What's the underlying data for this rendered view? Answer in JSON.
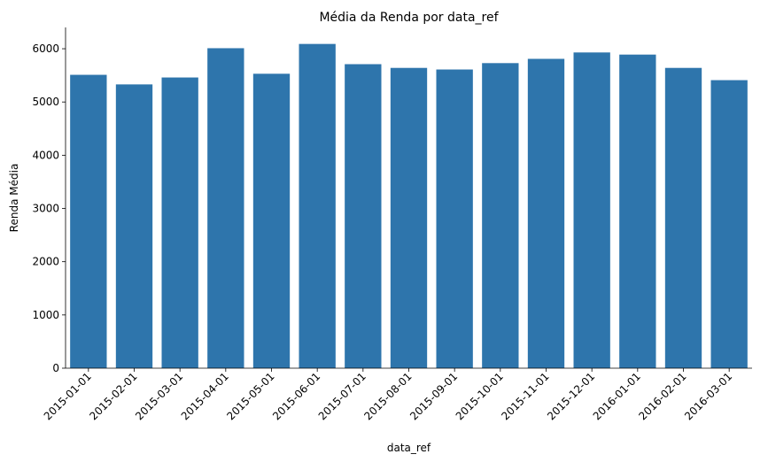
{
  "chart_data": {
    "type": "bar",
    "title": "Média da Renda por data_ref",
    "xlabel": "data_ref",
    "ylabel": "Renda Média",
    "categories": [
      "2015-01-01",
      "2015-02-01",
      "2015-03-01",
      "2015-04-01",
      "2015-05-01",
      "2015-06-01",
      "2015-07-01",
      "2015-08-01",
      "2015-09-01",
      "2015-10-01",
      "2015-11-01",
      "2015-12-01",
      "2016-01-01",
      "2016-02-01",
      "2016-03-01"
    ],
    "values": [
      5510,
      5330,
      5460,
      6010,
      5530,
      6090,
      5710,
      5640,
      5610,
      5730,
      5810,
      5930,
      5890,
      5640,
      5410
    ],
    "yticks": [
      0,
      1000,
      2000,
      3000,
      4000,
      5000,
      6000
    ],
    "ylim": [
      0,
      6400
    ],
    "bar_color": "#2e75ac",
    "grid": false,
    "legend": "none"
  }
}
